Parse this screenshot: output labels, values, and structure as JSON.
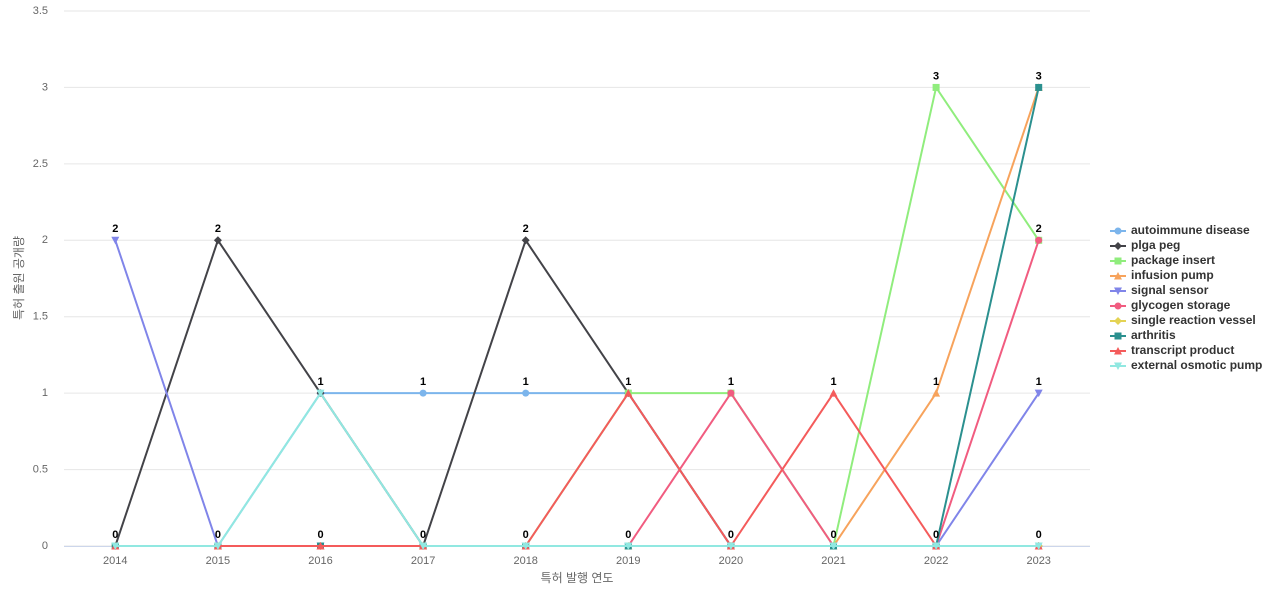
{
  "chart_data": {
    "type": "line",
    "x_label": "특허 발행 연도",
    "y_label": "특허 출원 공개량",
    "categories": [
      "2014",
      "2015",
      "2016",
      "2017",
      "2018",
      "2019",
      "2020",
      "2021",
      "2022",
      "2023"
    ],
    "ylim": [
      0,
      3.5
    ],
    "yticks": [
      0,
      0.5,
      1,
      1.5,
      2,
      2.5,
      3,
      3.5
    ],
    "grid": true,
    "series": [
      {
        "name": "autoimmune disease",
        "color": "#7cb5ec",
        "marker": "circle",
        "values": [
          0,
          0,
          1,
          1,
          1,
          1,
          0,
          0,
          0,
          0
        ]
      },
      {
        "name": "plga peg",
        "color": "#434348",
        "marker": "diamond",
        "values": [
          0,
          2,
          1,
          0,
          2,
          1,
          0,
          0,
          0,
          0
        ]
      },
      {
        "name": "package insert",
        "color": "#90ed7d",
        "marker": "square",
        "values": [
          0,
          0,
          0,
          0,
          0,
          1,
          1,
          0,
          3,
          2
        ]
      },
      {
        "name": "infusion pump",
        "color": "#f7a35c",
        "marker": "triangle",
        "values": [
          0,
          0,
          0,
          0,
          0,
          0,
          0,
          0,
          1,
          3
        ]
      },
      {
        "name": "signal sensor",
        "color": "#8085e9",
        "marker": "triangle-down",
        "values": [
          2,
          0,
          0,
          0,
          0,
          0,
          0,
          0,
          0,
          1
        ]
      },
      {
        "name": "glycogen storage",
        "color": "#f15c80",
        "marker": "circle",
        "values": [
          0,
          0,
          0,
          0,
          0,
          0,
          1,
          0,
          0,
          2
        ]
      },
      {
        "name": "single reaction vessel",
        "color": "#e4d354",
        "marker": "diamond",
        "values": [
          0,
          0,
          0,
          0,
          0,
          0,
          0,
          0,
          0,
          0
        ]
      },
      {
        "name": "arthritis",
        "color": "#2b908f",
        "marker": "square",
        "values": [
          0,
          0,
          0,
          0,
          0,
          0,
          0,
          0,
          0,
          3
        ]
      },
      {
        "name": "transcript product",
        "color": "#f45b5b",
        "marker": "triangle",
        "values": [
          0,
          0,
          0,
          0,
          0,
          1,
          0,
          1,
          0,
          0
        ]
      },
      {
        "name": "external osmotic pump",
        "color": "#91e8e1",
        "marker": "triangle-down",
        "values": [
          0,
          0,
          1,
          0,
          0,
          0,
          0,
          0,
          0,
          0
        ]
      }
    ]
  }
}
